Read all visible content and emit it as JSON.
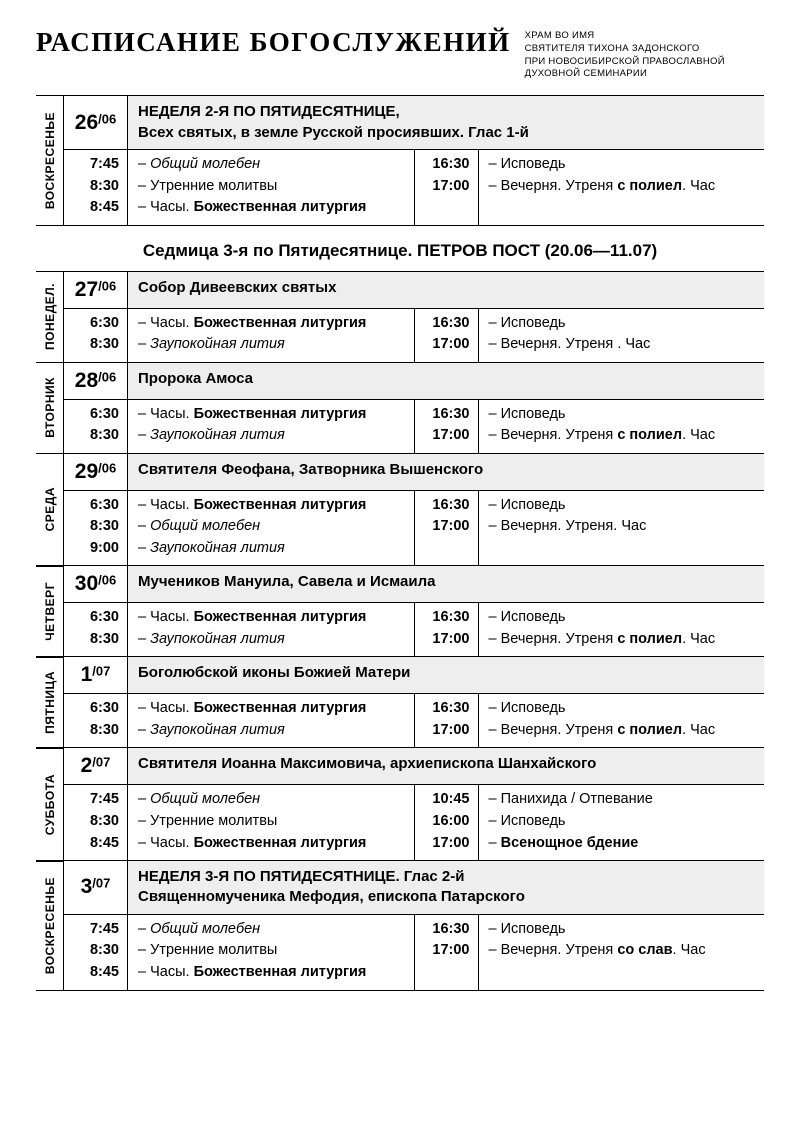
{
  "header": {
    "title": "РАСПИСАНИЕ БОГОСЛУЖЕНИЙ",
    "subtitle_lines": [
      "ХРАМ ВО ИМЯ",
      "СВЯТИТЕЛЯ ТИХОНА ЗАДОНСКОГО",
      "ПРИ НОВОСИБИРСКОЙ ПРАВОСЛАВНОЙ",
      "ДУХОВНОЙ СЕМИНАРИИ"
    ]
  },
  "week_title": "Седмица 3-я по Пятидесятнице. ПЕТРОВ ПОСТ (20.06—11.07)",
  "days": [
    {
      "weekday": "ВОСКРЕСЕНЬЕ",
      "date_day": "26",
      "date_month": "/06",
      "feast_html": "НЕДЕЛЯ 2-Я ПО ПЯТИДЕСЯТНИЦЕ,<br>Всех святых, в земле Русской просиявших. Глас 1-й",
      "left": [
        {
          "t": "7:45",
          "h": "– <span class='ital'>Общий молебен</span>"
        },
        {
          "t": "8:30",
          "h": "– Утренние молитвы"
        },
        {
          "t": "8:45",
          "h": "– Часы. <b>Божественная литургия</b>"
        }
      ],
      "right": [
        {
          "t": "16:30",
          "h": "– Исповедь"
        },
        {
          "t": "17:00",
          "h": "– Вечерня. Утреня <b>с полиел</b>. Час"
        }
      ],
      "after_week_title": true
    },
    {
      "weekday": "ПОНЕДЕЛ.",
      "date_day": "27",
      "date_month": "/06",
      "feast_html": "Собор Дивеевских святых",
      "left": [
        {
          "t": "6:30",
          "h": "– Часы. <b>Божественная литургия</b>"
        },
        {
          "t": "8:30",
          "h": "– <span class='ital'>Заупокойная лития</span>"
        }
      ],
      "right": [
        {
          "t": "16:30",
          "h": "– Исповедь"
        },
        {
          "t": "17:00",
          "h": "– Вечерня. Утреня . Час"
        }
      ]
    },
    {
      "weekday": "ВТОРНИК",
      "date_day": "28",
      "date_month": "/06",
      "feast_html": "Пророка Амоса",
      "left": [
        {
          "t": "6:30",
          "h": "– Часы. <b>Божественная литургия</b>"
        },
        {
          "t": "8:30",
          "h": "– <span class='ital'>Заупокойная лития</span>"
        }
      ],
      "right": [
        {
          "t": "16:30",
          "h": "– Исповедь"
        },
        {
          "t": "17:00",
          "h": "– Вечерня. Утреня <b>с полиел</b>. Час"
        }
      ]
    },
    {
      "weekday": "СРЕДА",
      "date_day": "29",
      "date_month": "/06",
      "feast_html": "Святителя Феофана, Затворника Вышенского",
      "left": [
        {
          "t": "6:30",
          "h": "– Часы. <b>Божественная литургия</b>"
        },
        {
          "t": "8:30",
          "h": "– <span class='ital'>Общий молебен</span>"
        },
        {
          "t": "9:00",
          "h": "– <span class='ital'>Заупокойная лития</span>"
        }
      ],
      "right": [
        {
          "t": "16:30",
          "h": "– Исповедь"
        },
        {
          "t": "17:00",
          "h": "– Вечерня. Утреня. Час"
        }
      ]
    },
    {
      "weekday": "ЧЕТВЕРГ",
      "date_day": "30",
      "date_month": "/06",
      "feast_html": "Мучеников Мануила, Савела и Исмаила",
      "left": [
        {
          "t": "6:30",
          "h": "– Часы. <b>Божественная литургия</b>"
        },
        {
          "t": "8:30",
          "h": "– <span class='ital'>Заупокойная лития</span>"
        }
      ],
      "right": [
        {
          "t": "16:30",
          "h": "– Исповедь"
        },
        {
          "t": "17:00",
          "h": "– Вечерня. Утреня <b>с полиел</b>. Час"
        }
      ]
    },
    {
      "weekday": "ПЯТНИЦА",
      "date_day": "1",
      "date_month": "/07",
      "feast_html": "Боголюбской иконы Божией Матери",
      "left": [
        {
          "t": "6:30",
          "h": "– Часы. <b>Божественная литургия</b>"
        },
        {
          "t": "8:30",
          "h": "– <span class='ital'>Заупокойная лития</span>"
        }
      ],
      "right": [
        {
          "t": "16:30",
          "h": "– Исповедь"
        },
        {
          "t": "17:00",
          "h": "– Вечерня. Утреня <b>с полиел</b>. Час"
        }
      ]
    },
    {
      "weekday": "СУББОТА",
      "date_day": "2",
      "date_month": "/07",
      "feast_html": "Святителя Иоанна Максимовича, архиепископа Шанхайского",
      "left": [
        {
          "t": "7:45",
          "h": "– <span class='ital'>Общий молебен</span>"
        },
        {
          "t": "8:30",
          "h": "– Утренние молитвы"
        },
        {
          "t": "8:45",
          "h": "– Часы. <b>Божественная литургия</b>"
        }
      ],
      "right": [
        {
          "t": "10:45",
          "h": "– Панихида / Отпевание"
        },
        {
          "t": "16:00",
          "h": "– Исповедь"
        },
        {
          "t": "17:00",
          "h": "– <b>Всенощное бдение</b>"
        }
      ]
    },
    {
      "weekday": "ВОСКРЕСЕНЬЕ",
      "date_day": "3",
      "date_month": "/07",
      "feast_html": "НЕДЕЛЯ 3-Я ПО ПЯТИДЕСЯТНИЦЕ. Глас 2-й<br>Священномученика Мефодия, епископа Патарского",
      "left": [
        {
          "t": "7:45",
          "h": "– <span class='ital'>Общий молебен</span>"
        },
        {
          "t": "8:30",
          "h": "– Утренние молитвы"
        },
        {
          "t": "8:45",
          "h": "– Часы. <b>Божественная литургия</b>"
        }
      ],
      "right": [
        {
          "t": "16:30",
          "h": "– Исповедь"
        },
        {
          "t": "17:00",
          "h": "– Вечерня. Утреня <b>со слав</b>. Час"
        }
      ]
    }
  ]
}
